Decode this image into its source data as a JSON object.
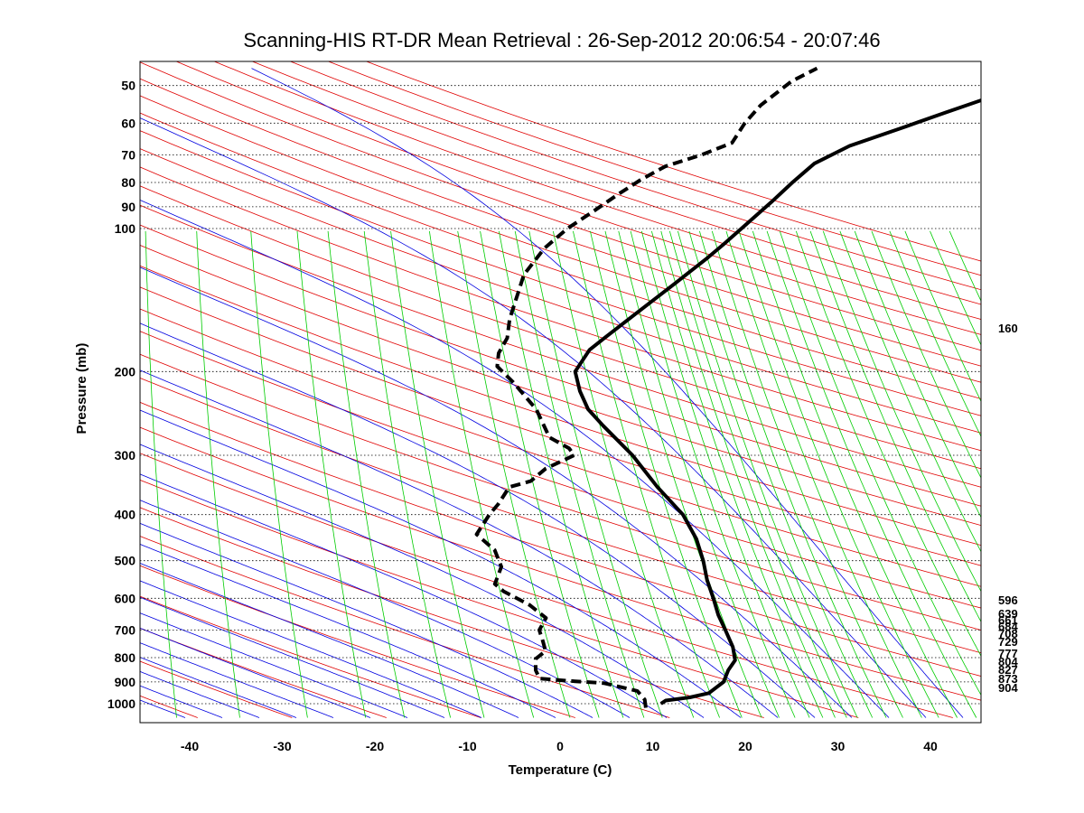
{
  "chart_data": {
    "type": "line",
    "title": "Scanning-HIS RT-DR Mean Retrieval : 26-Sep-2012 20:06:54 - 20:07:46",
    "xlabel": "Temperature (C)",
    "ylabel": "Pressure (mb)",
    "xlim": [
      -45,
      45
    ],
    "ylim": [
      1070,
      45
    ],
    "x_ticks": [
      -40,
      -30,
      -20,
      -10,
      0,
      10,
      20,
      30,
      40
    ],
    "y_ticks": [
      50,
      60,
      70,
      80,
      90,
      100,
      200,
      300,
      400,
      500,
      600,
      700,
      800,
      900,
      1000
    ],
    "grid": "pressure-dotted",
    "series": [
      {
        "name": "Temperature",
        "style": "solid",
        "color": "#000000",
        "points": [
          [
            10.9,
            1000
          ],
          [
            11.3,
            985
          ],
          [
            13.8,
            970
          ],
          [
            15.7,
            950
          ],
          [
            16.9,
            900
          ],
          [
            17.0,
            850
          ],
          [
            17.4,
            810
          ],
          [
            16.7,
            760
          ],
          [
            15.3,
            700
          ],
          [
            14.0,
            650
          ],
          [
            12.9,
            600
          ],
          [
            11.6,
            550
          ],
          [
            10.5,
            500
          ],
          [
            9.0,
            450
          ],
          [
            6.7,
            400
          ],
          [
            3.0,
            350
          ],
          [
            -0.8,
            300
          ],
          [
            -5.0,
            260
          ],
          [
            -7.2,
            240
          ],
          [
            -8.7,
            220
          ],
          [
            -9.9,
            200
          ],
          [
            -9.1,
            180
          ],
          [
            -7.9,
            170
          ],
          [
            -5.2,
            150
          ],
          [
            -2.1,
            130
          ],
          [
            0.5,
            115
          ],
          [
            1.7,
            108
          ],
          [
            3.1,
            100
          ],
          [
            5.4,
            88
          ],
          [
            7.0,
            80
          ],
          [
            8.7,
            73
          ],
          [
            11.9,
            67
          ],
          [
            17.3,
            61
          ],
          [
            21.1,
            57
          ],
          [
            26.4,
            52
          ],
          [
            32.4,
            47
          ]
        ]
      },
      {
        "name": "Dewpoint",
        "style": "dashed",
        "color": "#000000",
        "points": [
          [
            9.4,
            1020
          ],
          [
            9.0,
            980
          ],
          [
            7.9,
            940
          ],
          [
            4.0,
            905
          ],
          [
            0.1,
            895
          ],
          [
            -3.1,
            885
          ],
          [
            -3.8,
            850
          ],
          [
            -4.2,
            805
          ],
          [
            -3.4,
            775
          ],
          [
            -4.0,
            740
          ],
          [
            -4.8,
            700
          ],
          [
            -4.5,
            660
          ],
          [
            -6.7,
            620
          ],
          [
            -10.0,
            580
          ],
          [
            -11.2,
            560
          ],
          [
            -11.1,
            515
          ],
          [
            -12.4,
            475
          ],
          [
            -14.9,
            440
          ],
          [
            -14.2,
            400
          ],
          [
            -13.6,
            380
          ],
          [
            -13.0,
            350
          ],
          [
            -10.9,
            340
          ],
          [
            -9.7,
            320
          ],
          [
            -7.1,
            300
          ],
          [
            -7.9,
            290
          ],
          [
            -10.4,
            275
          ],
          [
            -12.8,
            240
          ],
          [
            -16.3,
            210
          ],
          [
            -18.5,
            195
          ],
          [
            -18.8,
            183
          ],
          [
            -18.4,
            170
          ],
          [
            -18.8,
            155
          ],
          [
            -18.8,
            140
          ],
          [
            -18.8,
            125
          ],
          [
            -17.5,
            110
          ],
          [
            -15.7,
            100
          ],
          [
            -13.5,
            92
          ],
          [
            -11.5,
            85
          ],
          [
            -9.5,
            79
          ],
          [
            -7.3,
            74
          ],
          [
            -3.8,
            70
          ],
          [
            -0.9,
            66
          ],
          [
            -0.2,
            60
          ],
          [
            0.9,
            55
          ],
          [
            3.4,
            49
          ],
          [
            5.7,
            46
          ]
        ]
      }
    ],
    "background_lines": [
      {
        "name": "Dry adiabats",
        "color": "#e00000"
      },
      {
        "name": "Moist adiabats",
        "color": "#0000e0"
      },
      {
        "name": "Mixing ratio lines",
        "color": "#00cc00"
      }
    ],
    "level_labels": [
      "160",
      "596",
      "639",
      "661",
      "684",
      "708",
      "729",
      "777",
      "804",
      "827",
      "873",
      "904"
    ]
  }
}
